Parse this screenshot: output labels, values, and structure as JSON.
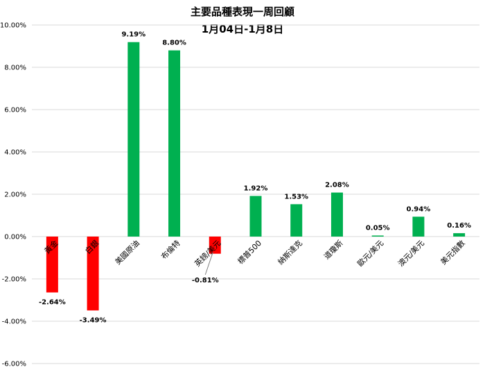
{
  "chart_data": {
    "type": "bar",
    "title": "主要品種表現一周回顧",
    "subtitle": "1月04日-1月8日",
    "categories": [
      "黃金",
      "白銀",
      "美國原油",
      "布倫特",
      "英鎊/美元",
      "標普500",
      "納斯達克",
      "道瓊斯",
      "歐元/美元",
      "澳元/美元",
      "美元指數"
    ],
    "values": [
      -2.64,
      -3.49,
      9.19,
      8.8,
      -0.81,
      1.92,
      1.53,
      2.08,
      0.05,
      0.94,
      0.16
    ],
    "value_labels": [
      "-2.64%",
      "-3.49%",
      "9.19%",
      "8.80%",
      "-0.81%",
      "1.92%",
      "1.53%",
      "2.08%",
      "0.05%",
      "0.94%",
      "0.16%"
    ],
    "ylim": [
      -6,
      10
    ],
    "yticks": [
      10,
      8,
      6,
      4,
      2,
      0,
      -2,
      -4,
      -6
    ],
    "ytick_labels": [
      "10.00%",
      "8.00%",
      "6.00%",
      "4.00%",
      "2.00%",
      "0.00%",
      "-2.00%",
      "-4.00%",
      "-6.00%"
    ],
    "grid": true,
    "colors": {
      "positive": "#00b050",
      "negative": "#ff0000"
    },
    "xlabel": "",
    "ylabel": ""
  }
}
